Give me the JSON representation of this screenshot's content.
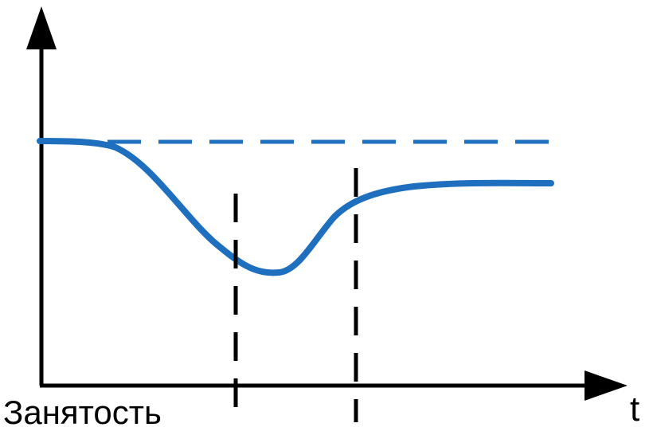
{
  "labels": {
    "y_axis": "Занятость",
    "x_axis": "t"
  },
  "colors": {
    "curve": "#1f6fbf",
    "reference_line": "#1f6fbf",
    "axes": "#000000",
    "markers": "#000000"
  }
}
